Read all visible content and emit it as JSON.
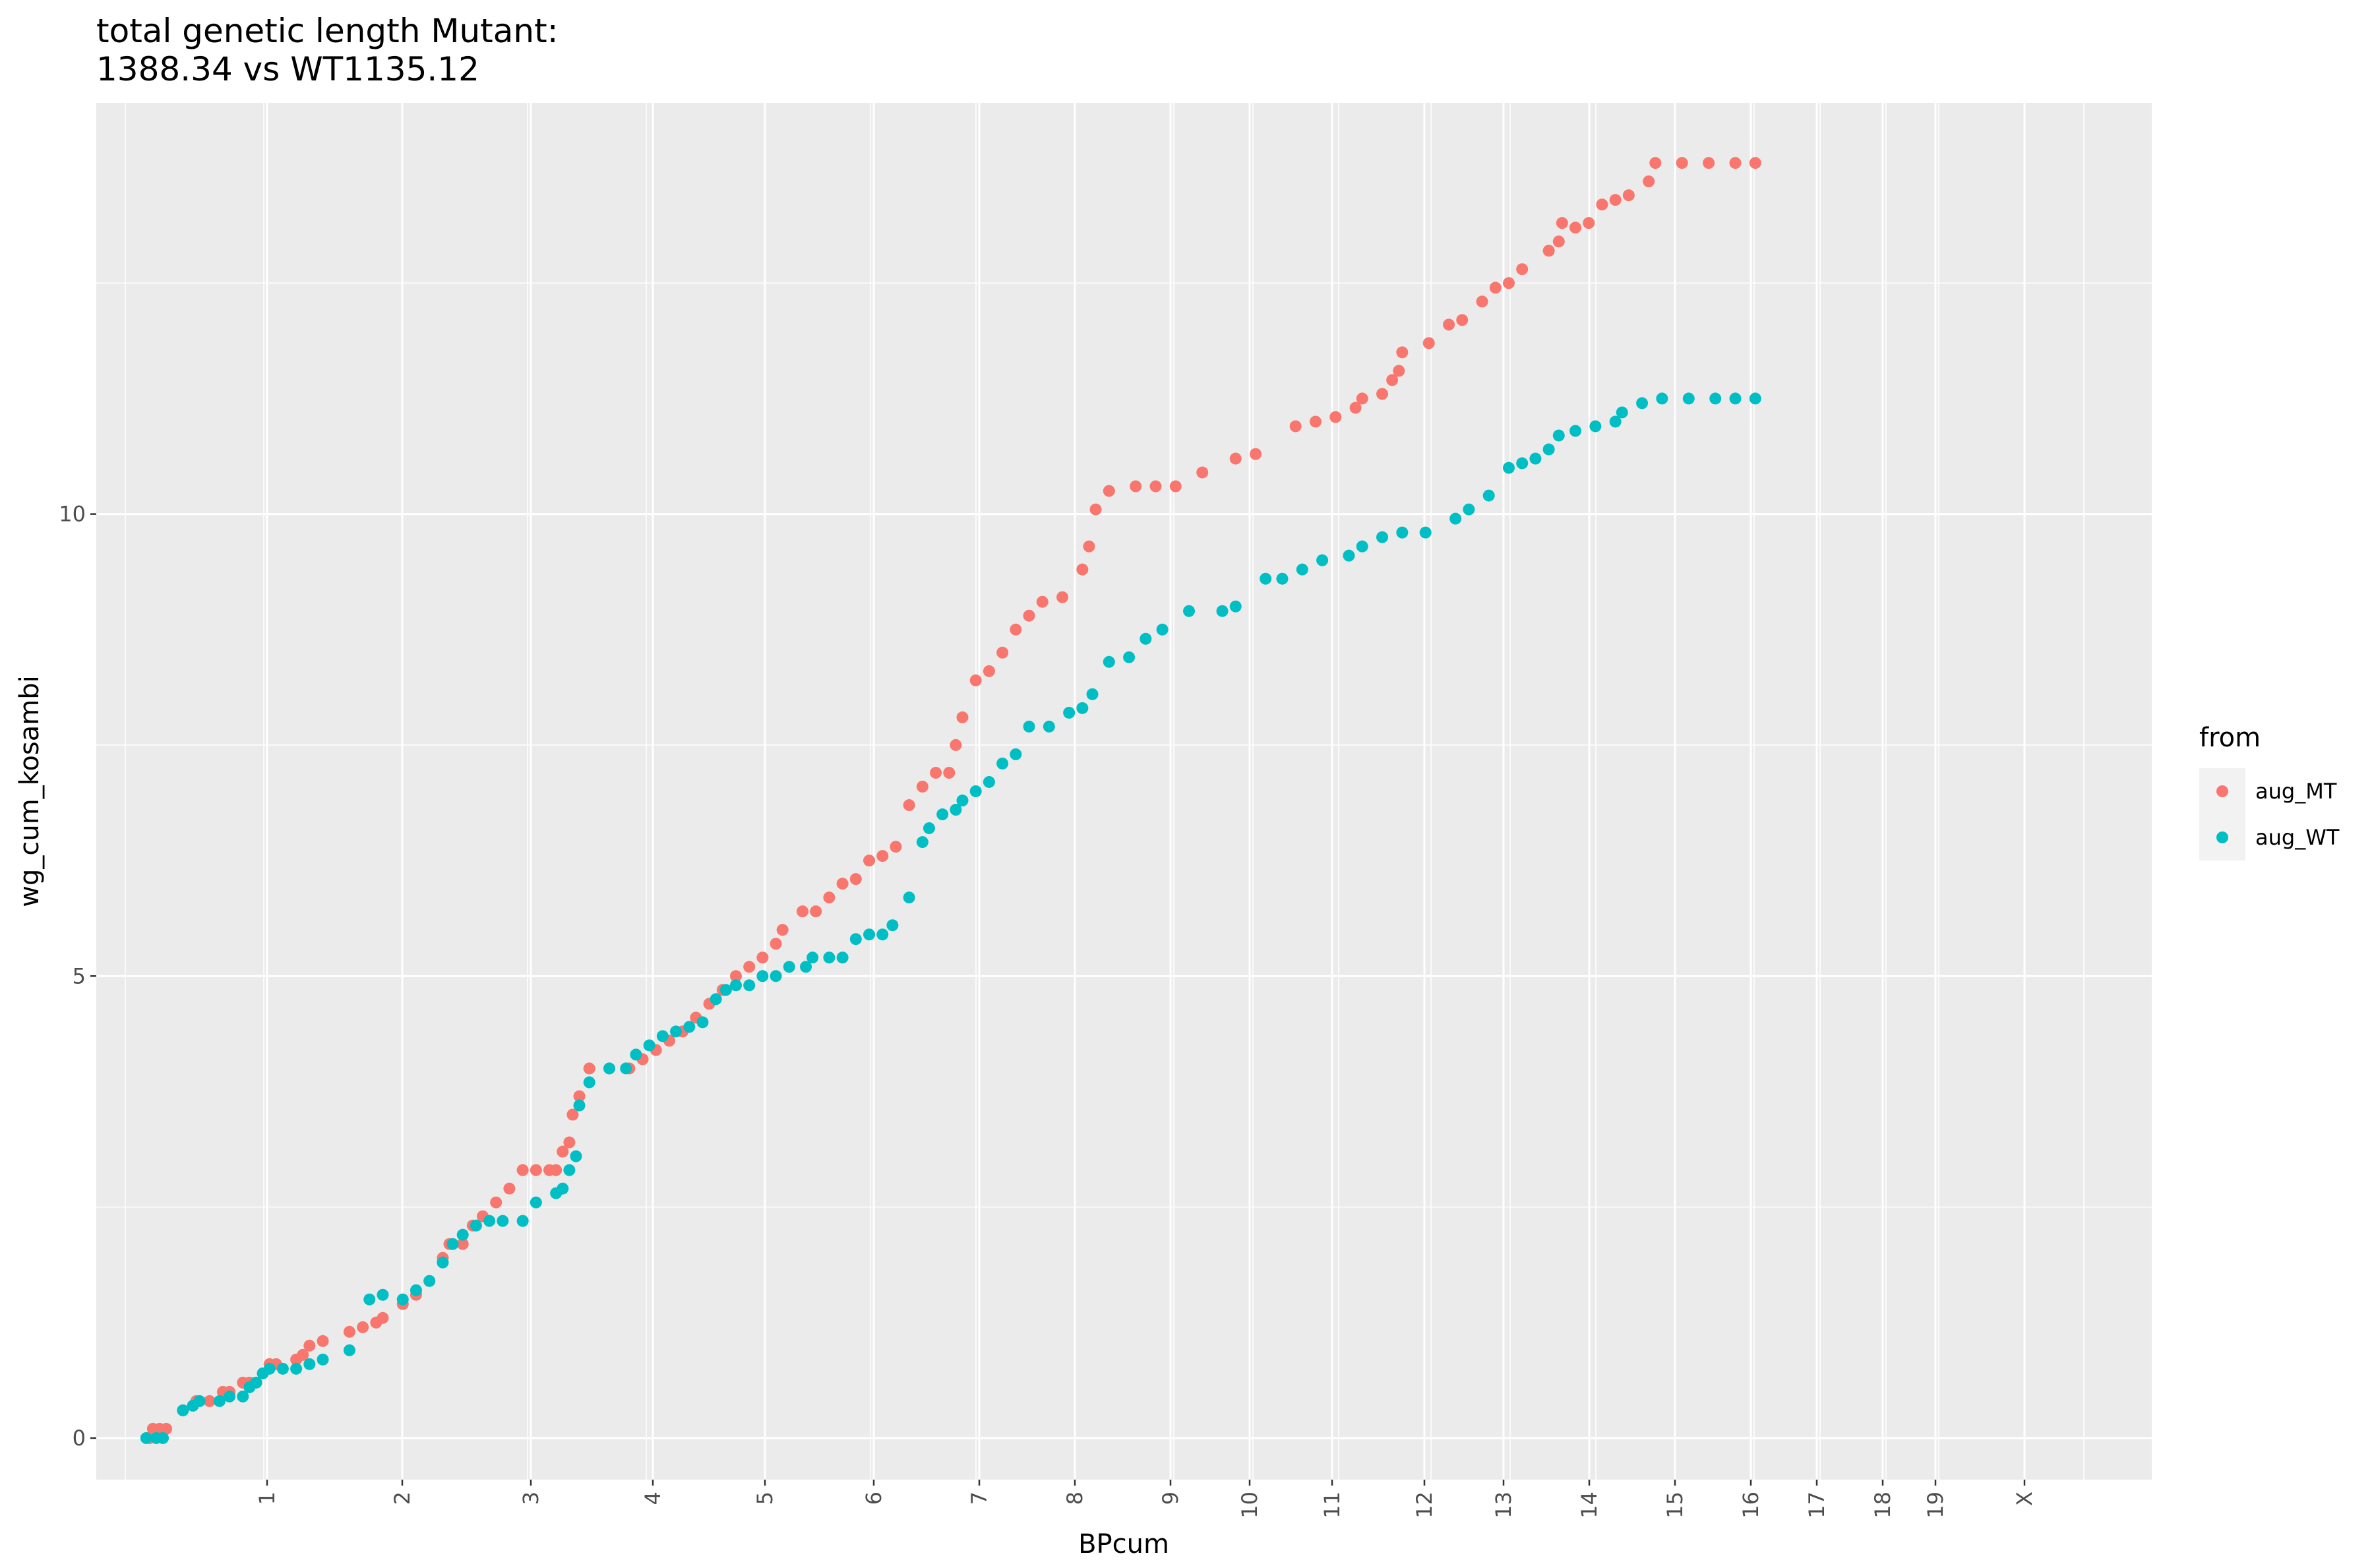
{
  "chart_data": {
    "type": "scatter",
    "title_lines": [
      "total genetic length Mutant:",
      "1388.34 vs WT1135.12"
    ],
    "xlabel": "BPcum",
    "ylabel": "wg_cum_kosambi",
    "x_tick_labels": [
      "1",
      "2",
      "3",
      "4",
      "5",
      "6",
      "7",
      "8",
      "9",
      "10",
      "11",
      "12",
      "13",
      "14",
      "15",
      "16",
      "17",
      "18",
      "19",
      "X"
    ],
    "y_ticks": [
      0,
      5,
      10
    ],
    "ylim": [
      -0.45,
      14.45
    ],
    "grid": true,
    "legend": {
      "title": "from",
      "position": "right"
    },
    "series": [
      {
        "name": "aug_MT",
        "color": "#F8766D",
        "points": [
          [
            0.8,
            0
          ],
          [
            0.85,
            0.1
          ],
          [
            0.95,
            0.1
          ],
          [
            1.05,
            0.1
          ],
          [
            1.3,
            0.3
          ],
          [
            1.5,
            0.4
          ],
          [
            1.7,
            0.4
          ],
          [
            1.9,
            0.5
          ],
          [
            2.0,
            0.5
          ],
          [
            2.2,
            0.6
          ],
          [
            2.3,
            0.6
          ],
          [
            2.4,
            0.6
          ],
          [
            2.5,
            0.7
          ],
          [
            2.6,
            0.8
          ],
          [
            2.7,
            0.8
          ],
          [
            3.0,
            0.85
          ],
          [
            3.1,
            0.9
          ],
          [
            3.2,
            1.0
          ],
          [
            3.4,
            1.05
          ],
          [
            3.8,
            1.15
          ],
          [
            4.0,
            1.2
          ],
          [
            4.2,
            1.25
          ],
          [
            4.3,
            1.3
          ],
          [
            4.6,
            1.45
          ],
          [
            4.8,
            1.55
          ],
          [
            5.0,
            1.7
          ],
          [
            5.2,
            1.95
          ],
          [
            5.3,
            2.1
          ],
          [
            5.5,
            2.1
          ],
          [
            5.65,
            2.3
          ],
          [
            5.8,
            2.4
          ],
          [
            6.0,
            2.55
          ],
          [
            6.2,
            2.7
          ],
          [
            6.4,
            2.9
          ],
          [
            6.6,
            2.9
          ],
          [
            6.8,
            2.9
          ],
          [
            6.9,
            2.9
          ],
          [
            7.0,
            3.1
          ],
          [
            7.1,
            3.2
          ],
          [
            7.15,
            3.5
          ],
          [
            7.25,
            3.7
          ],
          [
            7.4,
            4.0
          ],
          [
            7.7,
            4.0
          ],
          [
            8.0,
            4.0
          ],
          [
            8.2,
            4.1
          ],
          [
            8.4,
            4.2
          ],
          [
            8.6,
            4.3
          ],
          [
            8.8,
            4.4
          ],
          [
            9.0,
            4.55
          ],
          [
            9.2,
            4.7
          ],
          [
            9.4,
            4.85
          ],
          [
            9.6,
            5.0
          ],
          [
            9.8,
            5.1
          ],
          [
            10.0,
            5.2
          ],
          [
            10.2,
            5.35
          ],
          [
            10.3,
            5.5
          ],
          [
            10.6,
            5.7
          ],
          [
            10.8,
            5.7
          ],
          [
            11.0,
            5.85
          ],
          [
            11.2,
            6.0
          ],
          [
            11.4,
            6.05
          ],
          [
            11.6,
            6.25
          ],
          [
            11.8,
            6.3
          ],
          [
            12.0,
            6.4
          ],
          [
            12.2,
            6.85
          ],
          [
            12.4,
            7.05
          ],
          [
            12.6,
            7.2
          ],
          [
            12.8,
            7.2
          ],
          [
            12.9,
            7.5
          ],
          [
            13.0,
            7.8
          ],
          [
            13.2,
            8.2
          ],
          [
            13.4,
            8.3
          ],
          [
            13.6,
            8.5
          ],
          [
            13.8,
            8.75
          ],
          [
            14.0,
            8.9
          ],
          [
            14.2,
            9.05
          ],
          [
            14.5,
            9.1
          ],
          [
            14.8,
            9.4
          ],
          [
            14.9,
            9.65
          ],
          [
            15.0,
            10.05
          ],
          [
            15.2,
            10.25
          ],
          [
            15.6,
            10.3
          ],
          [
            15.9,
            10.3
          ],
          [
            16.2,
            10.3
          ],
          [
            16.6,
            10.45
          ],
          [
            17.1,
            10.6
          ],
          [
            17.4,
            10.65
          ],
          [
            18.0,
            10.95
          ],
          [
            18.3,
            11.0
          ],
          [
            18.6,
            11.05
          ],
          [
            18.9,
            11.15
          ],
          [
            19.0,
            11.25
          ],
          [
            19.3,
            11.3
          ],
          [
            19.45,
            11.45
          ],
          [
            19.55,
            11.55
          ],
          [
            19.6,
            11.75
          ],
          [
            20.0,
            11.85
          ],
          [
            20.3,
            12.05
          ],
          [
            20.5,
            12.1
          ],
          [
            20.8,
            12.3
          ],
          [
            21.0,
            12.45
          ],
          [
            21.2,
            12.5
          ],
          [
            21.4,
            12.65
          ],
          [
            21.8,
            12.85
          ],
          [
            21.95,
            12.95
          ],
          [
            22.0,
            13.15
          ],
          [
            22.2,
            13.1
          ],
          [
            22.4,
            13.15
          ],
          [
            22.6,
            13.35
          ],
          [
            22.8,
            13.4
          ],
          [
            23.0,
            13.45
          ],
          [
            23.3,
            13.6
          ],
          [
            23.4,
            13.8
          ],
          [
            23.8,
            13.8
          ],
          [
            24.2,
            13.8
          ],
          [
            24.6,
            13.8
          ],
          [
            24.9,
            13.8
          ]
        ]
      },
      {
        "name": "aug_WT",
        "color": "#00BFC4",
        "points": [
          [
            0.75,
            0
          ],
          [
            0.9,
            0
          ],
          [
            1.0,
            0
          ],
          [
            1.3,
            0.3
          ],
          [
            1.45,
            0.35
          ],
          [
            1.55,
            0.4
          ],
          [
            1.85,
            0.4
          ],
          [
            2.0,
            0.45
          ],
          [
            2.2,
            0.45
          ],
          [
            2.3,
            0.55
          ],
          [
            2.4,
            0.6
          ],
          [
            2.5,
            0.7
          ],
          [
            2.6,
            0.75
          ],
          [
            2.8,
            0.75
          ],
          [
            3.0,
            0.75
          ],
          [
            3.2,
            0.8
          ],
          [
            3.4,
            0.85
          ],
          [
            3.8,
            0.95
          ],
          [
            4.1,
            1.5
          ],
          [
            4.3,
            1.55
          ],
          [
            4.6,
            1.5
          ],
          [
            4.8,
            1.6
          ],
          [
            5.0,
            1.7
          ],
          [
            5.2,
            1.9
          ],
          [
            5.35,
            2.1
          ],
          [
            5.5,
            2.2
          ],
          [
            5.7,
            2.3
          ],
          [
            5.9,
            2.35
          ],
          [
            6.1,
            2.35
          ],
          [
            6.4,
            2.35
          ],
          [
            6.6,
            2.55
          ],
          [
            6.9,
            2.65
          ],
          [
            7.0,
            2.7
          ],
          [
            7.1,
            2.9
          ],
          [
            7.2,
            3.05
          ],
          [
            7.25,
            3.6
          ],
          [
            7.4,
            3.85
          ],
          [
            7.7,
            4.0
          ],
          [
            7.95,
            4.0
          ],
          [
            8.1,
            4.15
          ],
          [
            8.3,
            4.25
          ],
          [
            8.5,
            4.35
          ],
          [
            8.7,
            4.4
          ],
          [
            8.9,
            4.45
          ],
          [
            9.1,
            4.5
          ],
          [
            9.3,
            4.75
          ],
          [
            9.45,
            4.85
          ],
          [
            9.6,
            4.9
          ],
          [
            9.8,
            4.9
          ],
          [
            10.0,
            5.0
          ],
          [
            10.2,
            5.0
          ],
          [
            10.4,
            5.1
          ],
          [
            10.65,
            5.1
          ],
          [
            10.75,
            5.2
          ],
          [
            11.0,
            5.2
          ],
          [
            11.2,
            5.2
          ],
          [
            11.4,
            5.4
          ],
          [
            11.6,
            5.45
          ],
          [
            11.8,
            5.45
          ],
          [
            11.95,
            5.55
          ],
          [
            12.2,
            5.85
          ],
          [
            12.4,
            6.45
          ],
          [
            12.5,
            6.6
          ],
          [
            12.7,
            6.75
          ],
          [
            12.9,
            6.8
          ],
          [
            13.0,
            6.9
          ],
          [
            13.2,
            7.0
          ],
          [
            13.4,
            7.1
          ],
          [
            13.6,
            7.3
          ],
          [
            13.8,
            7.4
          ],
          [
            14.0,
            7.7
          ],
          [
            14.3,
            7.7
          ],
          [
            14.6,
            7.85
          ],
          [
            14.8,
            7.9
          ],
          [
            14.95,
            8.05
          ],
          [
            15.2,
            8.4
          ],
          [
            15.5,
            8.45
          ],
          [
            15.75,
            8.65
          ],
          [
            16.0,
            8.75
          ],
          [
            16.4,
            8.95
          ],
          [
            16.9,
            8.95
          ],
          [
            17.1,
            9.0
          ],
          [
            17.55,
            9.3
          ],
          [
            17.8,
            9.3
          ],
          [
            18.1,
            9.4
          ],
          [
            18.4,
            9.5
          ],
          [
            18.8,
            9.55
          ],
          [
            19.0,
            9.65
          ],
          [
            19.3,
            9.75
          ],
          [
            19.6,
            9.8
          ],
          [
            19.95,
            9.8
          ],
          [
            20.4,
            9.95
          ],
          [
            20.6,
            10.05
          ],
          [
            20.9,
            10.2
          ],
          [
            21.2,
            10.5
          ],
          [
            21.4,
            10.55
          ],
          [
            21.6,
            10.6
          ],
          [
            21.8,
            10.7
          ],
          [
            21.95,
            10.85
          ],
          [
            22.2,
            10.9
          ],
          [
            22.5,
            10.95
          ],
          [
            22.8,
            11.0
          ],
          [
            22.9,
            11.1
          ],
          [
            23.2,
            11.2
          ],
          [
            23.5,
            11.25
          ],
          [
            23.9,
            11.25
          ],
          [
            24.3,
            11.25
          ],
          [
            24.6,
            11.25
          ],
          [
            24.9,
            11.25
          ]
        ]
      }
    ]
  }
}
